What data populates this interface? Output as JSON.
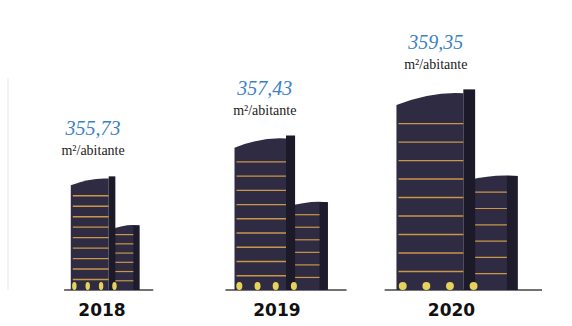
{
  "chart_data": {
    "type": "bar",
    "categories": [
      "2018",
      "2019",
      "2020"
    ],
    "values": [
      355.73,
      357.43,
      359.35
    ],
    "value_labels": [
      "355,73",
      "357,43",
      "359,35"
    ],
    "y_label": "m²/abitante",
    "ylim": [
      351,
      360
    ],
    "data_labels": true,
    "tick_labels": "x",
    "color": "#2f2b42"
  }
}
